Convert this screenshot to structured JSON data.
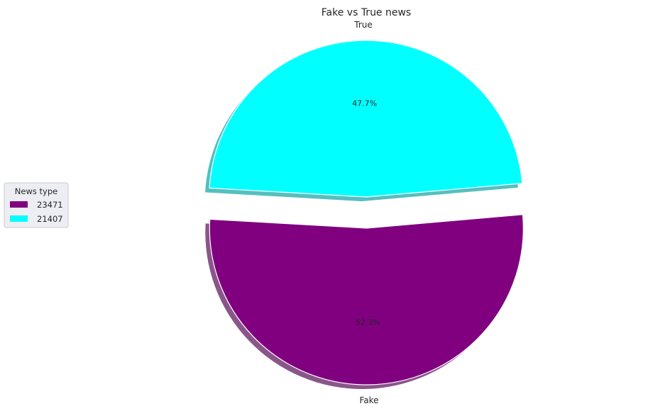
{
  "chart_data": {
    "type": "pie",
    "title": "Fake vs True news",
    "slices": [
      {
        "label": "Fake",
        "value": 23471,
        "percent_label": "52.3%",
        "color": "#800080",
        "exploded": true
      },
      {
        "label": "True",
        "value": 21407,
        "percent_label": "47.7%",
        "color": "#00ffff",
        "exploded": true
      }
    ],
    "shadow": true,
    "legend": {
      "title": "News type",
      "placement": "center-left",
      "entries": [
        {
          "label": "23471",
          "color": "#800080"
        },
        {
          "label": "21407",
          "color": "#00ffff"
        }
      ]
    }
  }
}
